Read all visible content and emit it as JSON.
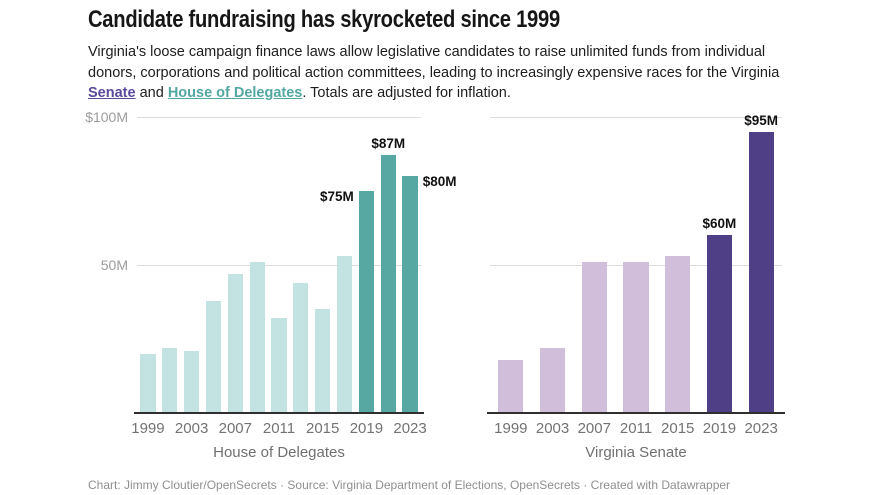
{
  "header": {
    "title": "Candidate fundraising has skyrocketed since 1999",
    "description": {
      "part1": "Virginia's loose campaign finance laws allow legislative candidates to raise unlimited funds from individual donors, corporations and political action committees, leading to increasingly expensive races  for the Virginia ",
      "senate_link": "Senate",
      "part2": " and ",
      "house_link": "House of Delegates",
      "part3": ". Totals are adjusted for inflation."
    }
  },
  "colors": {
    "senate_link": "#5b4a9b",
    "house_link": "#52a7a1",
    "house_base": "#c2e3e1",
    "house_highlight": "#57a8a2",
    "senate_base": "#d1bedb",
    "senate_highlight": "#4e3f87"
  },
  "chart_data": [
    {
      "type": "bar",
      "title": "House of Delegates",
      "x": [
        1999,
        2001,
        2003,
        2005,
        2007,
        2009,
        2011,
        2013,
        2015,
        2017,
        2019,
        2021,
        2023
      ],
      "values": [
        20,
        22,
        21,
        38,
        47,
        51,
        32,
        44,
        35,
        53,
        75,
        87,
        80
      ],
      "unit": "million USD",
      "ylim": [
        0,
        100
      ],
      "gridlines": [
        100,
        50
      ],
      "y_tick_labels": [
        {
          "value": 100,
          "label": "$100M"
        },
        {
          "value": 50,
          "label": "50M"
        }
      ],
      "x_tick_labels": [
        "1999",
        "2003",
        "2007",
        "2011",
        "2015",
        "2019",
        "2023"
      ],
      "highlighted_x": [
        2019,
        2021,
        2023
      ],
      "bar_labels": [
        {
          "x": 2019,
          "text": "$75M",
          "placement": "left"
        },
        {
          "x": 2021,
          "text": "$87M",
          "placement": "above"
        },
        {
          "x": 2023,
          "text": "$80M",
          "placement": "right"
        }
      ],
      "colors": {
        "base": "#c2e3e1",
        "highlight": "#57a8a2"
      }
    },
    {
      "type": "bar",
      "title": "Virginia Senate",
      "x": [
        1999,
        2003,
        2007,
        2011,
        2015,
        2019,
        2023
      ],
      "values": [
        18,
        22,
        51,
        51,
        53,
        60,
        95
      ],
      "unit": "million USD",
      "ylim": [
        0,
        100
      ],
      "gridlines": [
        100,
        50
      ],
      "y_tick_labels": [],
      "x_tick_labels": [
        "1999",
        "2003",
        "2007",
        "2011",
        "2015",
        "2019",
        "2023"
      ],
      "highlighted_x": [
        2019,
        2023
      ],
      "bar_labels": [
        {
          "x": 2019,
          "text": "$60M",
          "placement": "above"
        },
        {
          "x": 2023,
          "text": "$95M",
          "placement": "above"
        }
      ],
      "colors": {
        "base": "#d1bedb",
        "highlight": "#4e3f87"
      }
    }
  ],
  "footer": {
    "text": "Chart: Jimmy Cloutier/OpenSecrets · Source: Virginia Department of Elections, OpenSecrets · Created with Datawrapper"
  }
}
